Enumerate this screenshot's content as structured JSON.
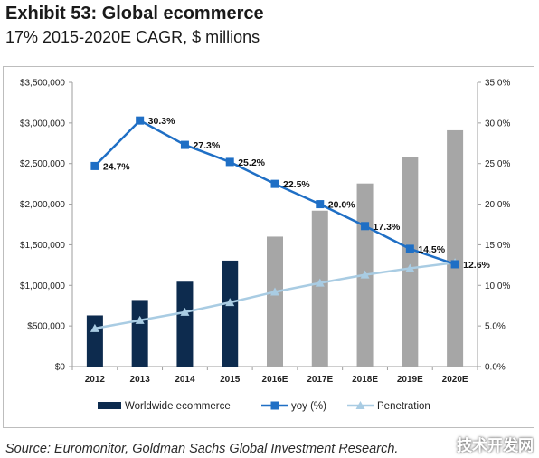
{
  "header": {
    "title": "Exhibit 53: Global ecommerce",
    "subtitle": "17% 2015-2020E CAGR, $ millions"
  },
  "footer": {
    "source": "Source: Euromonitor, Goldman Sachs Global Investment Research.",
    "watermark": "技术开发网"
  },
  "chart_data": {
    "type": "bar",
    "categories": [
      "2012",
      "2013",
      "2014",
      "2015",
      "2016E",
      "2017E",
      "2018E",
      "2019E",
      "2020E"
    ],
    "left_axis": {
      "ylim": [
        0,
        3500000
      ],
      "ticks": [
        0,
        500000,
        1000000,
        1500000,
        2000000,
        2500000,
        3000000,
        3500000
      ],
      "tick_labels": [
        "$0",
        "$500,000",
        "$1,000,000",
        "$1,500,000",
        "$2,000,000",
        "$2,500,000",
        "$3,000,000",
        "$3,500,000"
      ]
    },
    "right_axis": {
      "ylim": [
        0,
        35
      ],
      "ticks": [
        0,
        5,
        10,
        15,
        20,
        25,
        30,
        35
      ],
      "tick_labels": [
        "0.0%",
        "5.0%",
        "10.0%",
        "15.0%",
        "20.0%",
        "25.0%",
        "30.0%",
        "35.0%"
      ]
    },
    "series": [
      {
        "name": "Worldwide ecommerce",
        "type": "bar",
        "axis": "left",
        "values": [
          630000,
          820000,
          1045000,
          1305000,
          1600000,
          1920000,
          2255000,
          2580000,
          2910000
        ],
        "colors": [
          "#0d2b4e",
          "#0d2b4e",
          "#0d2b4e",
          "#0d2b4e",
          "#a6a6a6",
          "#a6a6a6",
          "#a6a6a6",
          "#a6a6a6",
          "#a6a6a6"
        ]
      },
      {
        "name": "yoy (%)",
        "type": "line",
        "axis": "right",
        "marker": "square",
        "color": "#1f6fc5",
        "values": [
          24.7,
          30.3,
          27.3,
          25.2,
          22.5,
          20.0,
          17.3,
          14.5,
          12.6
        ],
        "data_labels": [
          "24.7%",
          "30.3%",
          "27.3%",
          "25.2%",
          "22.5%",
          "20.0%",
          "17.3%",
          "14.5%",
          "12.6%"
        ]
      },
      {
        "name": "Penetration",
        "type": "line",
        "axis": "right",
        "marker": "triangle",
        "color": "#a9cce3",
        "values": [
          4.7,
          5.7,
          6.7,
          7.9,
          9.2,
          10.3,
          11.3,
          12.1,
          12.8
        ]
      }
    ],
    "grid": false,
    "legend": "bottom"
  }
}
